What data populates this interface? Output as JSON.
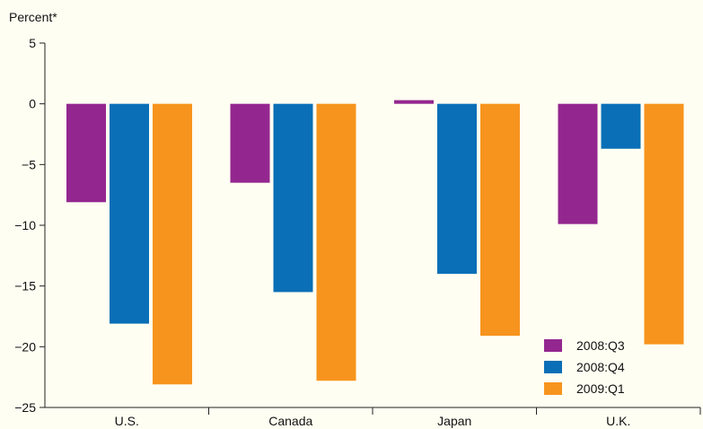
{
  "chart_data": {
    "type": "bar",
    "ylabel": "Percent*",
    "categories": [
      "U.S.",
      "Canada",
      "Japan",
      "U.K."
    ],
    "series": [
      {
        "name": "2008:Q3",
        "color": "#93278f",
        "values": [
          -8.1,
          -6.5,
          0.3,
          -9.9
        ]
      },
      {
        "name": "2008:Q4",
        "color": "#0a6fb7",
        "values": [
          -18.1,
          -15.5,
          -14.0,
          -3.7
        ]
      },
      {
        "name": "2009:Q1",
        "color": "#f7941d",
        "values": [
          -23.1,
          -22.8,
          -19.1,
          -19.8
        ]
      }
    ],
    "ylim": [
      -25,
      5
    ],
    "yticks": [
      5,
      0,
      -5,
      -10,
      -15,
      -20,
      -25
    ],
    "grid": false,
    "legend_position": "bottom-right"
  }
}
